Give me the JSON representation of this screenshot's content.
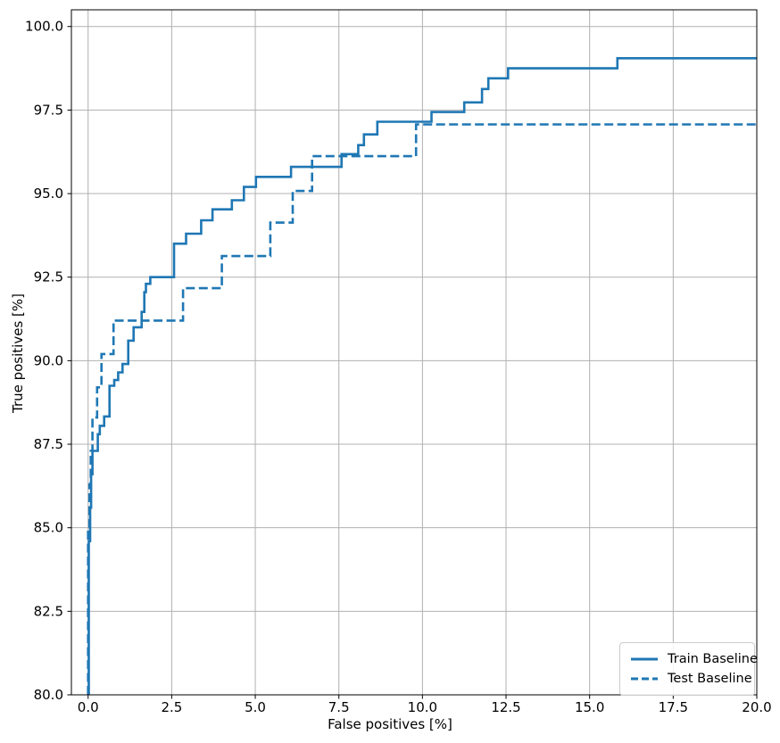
{
  "chart_data": {
    "type": "line",
    "subtype": "step-roc",
    "title": "",
    "xlabel": "False positives [%]",
    "ylabel": "True positives [%]",
    "xlim": [
      -0.5,
      20.0
    ],
    "ylim": [
      80.0,
      100.5
    ],
    "x_ticks": [
      0.0,
      2.5,
      5.0,
      7.5,
      10.0,
      12.5,
      15.0,
      17.5,
      20.0
    ],
    "y_ticks": [
      80.0,
      82.5,
      85.0,
      87.5,
      90.0,
      92.5,
      95.0,
      97.5,
      100.0
    ],
    "grid": true,
    "grid_color": "#b0b0b0",
    "legend_position": "lower right",
    "line_color": "#1f77b4",
    "series": [
      {
        "name": "Train Baseline",
        "style": "solid",
        "points": [
          [
            0.02,
            80
          ],
          [
            0.02,
            84.6
          ],
          [
            0.06,
            84.6
          ],
          [
            0.06,
            85.6
          ],
          [
            0.09,
            85.6
          ],
          [
            0.09,
            86.6
          ],
          [
            0.13,
            86.6
          ],
          [
            0.13,
            87.3
          ],
          [
            0.29,
            87.3
          ],
          [
            0.29,
            87.8
          ],
          [
            0.35,
            87.8
          ],
          [
            0.35,
            88.05
          ],
          [
            0.48,
            88.05
          ],
          [
            0.48,
            88.33
          ],
          [
            0.64,
            88.33
          ],
          [
            0.64,
            89.25
          ],
          [
            0.78,
            89.25
          ],
          [
            0.78,
            89.42
          ],
          [
            0.9,
            89.42
          ],
          [
            0.9,
            89.65
          ],
          [
            1.03,
            89.65
          ],
          [
            1.03,
            89.9
          ],
          [
            1.2,
            89.9
          ],
          [
            1.2,
            90.6
          ],
          [
            1.36,
            90.6
          ],
          [
            1.36,
            91.0
          ],
          [
            1.6,
            91.0
          ],
          [
            1.6,
            91.46
          ],
          [
            1.68,
            91.46
          ],
          [
            1.68,
            92.05
          ],
          [
            1.73,
            92.05
          ],
          [
            1.73,
            92.3
          ],
          [
            1.86,
            92.3
          ],
          [
            1.86,
            92.5
          ],
          [
            2.57,
            92.5
          ],
          [
            2.57,
            93.5
          ],
          [
            2.93,
            93.5
          ],
          [
            2.93,
            93.8
          ],
          [
            3.38,
            93.8
          ],
          [
            3.38,
            94.2
          ],
          [
            3.72,
            94.2
          ],
          [
            3.72,
            94.53
          ],
          [
            4.3,
            94.53
          ],
          [
            4.3,
            94.8
          ],
          [
            4.66,
            94.8
          ],
          [
            4.66,
            95.2
          ],
          [
            5.02,
            95.2
          ],
          [
            5.02,
            95.5
          ],
          [
            6.07,
            95.5
          ],
          [
            6.07,
            95.8
          ],
          [
            7.58,
            95.8
          ],
          [
            7.58,
            96.18
          ],
          [
            8.08,
            96.18
          ],
          [
            8.08,
            96.45
          ],
          [
            8.25,
            96.45
          ],
          [
            8.25,
            96.77
          ],
          [
            8.65,
            96.77
          ],
          [
            8.65,
            97.15
          ],
          [
            10.27,
            97.15
          ],
          [
            10.27,
            97.44
          ],
          [
            11.25,
            97.44
          ],
          [
            11.25,
            97.73
          ],
          [
            11.78,
            97.73
          ],
          [
            11.78,
            98.13
          ],
          [
            11.97,
            98.13
          ],
          [
            11.97,
            98.45
          ],
          [
            12.56,
            98.45
          ],
          [
            12.56,
            98.75
          ],
          [
            15.83,
            98.75
          ],
          [
            15.83,
            99.05
          ],
          [
            20.0,
            99.05
          ]
        ]
      },
      {
        "name": "Test Baseline",
        "style": "dashed",
        "points": [
          [
            0.0,
            80
          ],
          [
            0.0,
            85.0
          ],
          [
            0.04,
            85.0
          ],
          [
            0.04,
            86.3
          ],
          [
            0.08,
            86.3
          ],
          [
            0.08,
            87.3
          ],
          [
            0.13,
            87.3
          ],
          [
            0.13,
            88.3
          ],
          [
            0.27,
            88.3
          ],
          [
            0.27,
            89.2
          ],
          [
            0.4,
            89.2
          ],
          [
            0.4,
            90.2
          ],
          [
            0.76,
            90.2
          ],
          [
            0.76,
            91.2
          ],
          [
            2.84,
            91.2
          ],
          [
            2.84,
            92.17
          ],
          [
            4.0,
            92.17
          ],
          [
            4.0,
            93.13
          ],
          [
            5.45,
            93.13
          ],
          [
            5.45,
            94.13
          ],
          [
            6.12,
            94.13
          ],
          [
            6.12,
            95.08
          ],
          [
            6.7,
            95.08
          ],
          [
            6.7,
            96.12
          ],
          [
            9.81,
            96.12
          ],
          [
            9.81,
            97.07
          ],
          [
            20.0,
            97.07
          ]
        ]
      }
    ]
  }
}
